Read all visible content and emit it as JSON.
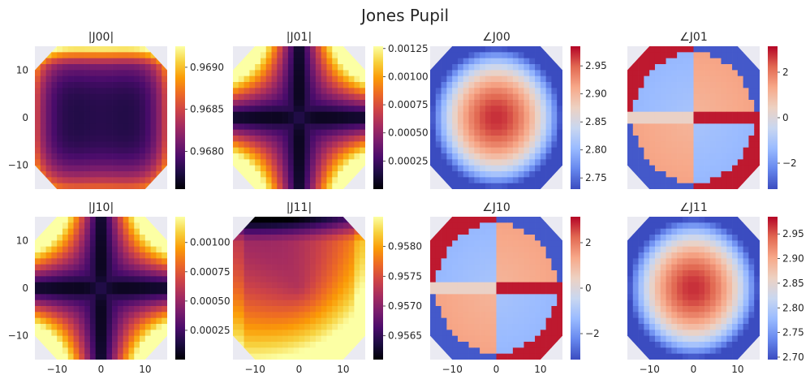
{
  "figure": {
    "title": "Jones Pupil"
  },
  "chart_data": [
    {
      "type": "heatmap",
      "title": "|J00|",
      "colormap": "inferno",
      "pattern": "J00amp",
      "xlim": [
        -15,
        15
      ],
      "ylim": [
        -15,
        15
      ],
      "xticks": [
        -10,
        0,
        10
      ],
      "xtick_labels": [
        "−10",
        "0",
        "10"
      ],
      "show_xticks": false,
      "yticks": [
        -10,
        0,
        10
      ],
      "ytick_labels": [
        "−10",
        "0",
        "10"
      ],
      "show_yticks": true,
      "clim": [
        0.96755,
        0.96925
      ],
      "colorbar_ticks": [
        0.968,
        0.9685,
        0.969
      ],
      "colorbar_labels": [
        "0.9680",
        "0.9685",
        "0.9690"
      ]
    },
    {
      "type": "heatmap",
      "title": "|J01|",
      "colormap": "inferno",
      "pattern": "offdiag",
      "xlim": [
        -15,
        15
      ],
      "ylim": [
        -15,
        15
      ],
      "xticks": [
        -10,
        0,
        10
      ],
      "xtick_labels": [
        "−10",
        "0",
        "10"
      ],
      "show_xticks": false,
      "yticks": [
        -10,
        0,
        10
      ],
      "ytick_labels": [
        "−10",
        "0",
        "10"
      ],
      "show_yticks": false,
      "clim": [
        0.0,
        0.00127
      ],
      "colorbar_ticks": [
        0.00025,
        0.0005,
        0.00075,
        0.001,
        0.00125
      ],
      "colorbar_labels": [
        "0.00025",
        "0.00050",
        "0.00075",
        "0.00100",
        "0.00125"
      ]
    },
    {
      "type": "heatmap",
      "title": "∠J00",
      "colormap": "coolwarm",
      "pattern": "phaseRadial",
      "xlim": [
        -15,
        15
      ],
      "ylim": [
        -15,
        15
      ],
      "xticks": [
        -10,
        0,
        10
      ],
      "xtick_labels": [
        "−10",
        "0",
        "10"
      ],
      "show_xticks": false,
      "yticks": [
        -10,
        0,
        10
      ],
      "ytick_labels": [
        "−10",
        "0",
        "10"
      ],
      "show_yticks": false,
      "clim": [
        2.73,
        2.985
      ],
      "colorbar_ticks": [
        2.75,
        2.8,
        2.85,
        2.9,
        2.95
      ],
      "colorbar_labels": [
        "2.75",
        "2.80",
        "2.85",
        "2.90",
        "2.95"
      ]
    },
    {
      "type": "heatmap",
      "title": "∠J01",
      "colormap": "coolwarm",
      "pattern": "phaseQuad",
      "xlim": [
        -15,
        15
      ],
      "ylim": [
        -15,
        15
      ],
      "xticks": [
        -10,
        0,
        10
      ],
      "xtick_labels": [
        "−10",
        "0",
        "10"
      ],
      "show_xticks": false,
      "yticks": [
        -10,
        0,
        10
      ],
      "ytick_labels": [
        "−10",
        "0",
        "10"
      ],
      "show_yticks": false,
      "clim": [
        -3.1416,
        3.1416
      ],
      "colorbar_ticks": [
        -2,
        0,
        2
      ],
      "colorbar_labels": [
        "−2",
        "0",
        "2"
      ]
    },
    {
      "type": "heatmap",
      "title": "|J10|",
      "colormap": "inferno",
      "pattern": "offdiag",
      "xlim": [
        -15,
        15
      ],
      "ylim": [
        -15,
        15
      ],
      "xticks": [
        -10,
        0,
        10
      ],
      "xtick_labels": [
        "−10",
        "0",
        "10"
      ],
      "show_xticks": true,
      "yticks": [
        -10,
        0,
        10
      ],
      "ytick_labels": [
        "−10",
        "0",
        "10"
      ],
      "show_yticks": true,
      "clim": [
        0.0,
        0.00122
      ],
      "colorbar_ticks": [
        0.00025,
        0.0005,
        0.00075,
        0.001
      ],
      "colorbar_labels": [
        "0.00025",
        "0.00050",
        "0.00075",
        "0.00100"
      ]
    },
    {
      "type": "heatmap",
      "title": "|J11|",
      "colormap": "inferno",
      "pattern": "J11amp",
      "xlim": [
        -15,
        15
      ],
      "ylim": [
        -15,
        15
      ],
      "xticks": [
        -10,
        0,
        10
      ],
      "xtick_labels": [
        "−10",
        "0",
        "10"
      ],
      "show_xticks": true,
      "yticks": [
        -10,
        0,
        10
      ],
      "ytick_labels": [
        "−10",
        "0",
        "10"
      ],
      "show_yticks": false,
      "clim": [
        0.9561,
        0.9585
      ],
      "colorbar_ticks": [
        0.9565,
        0.957,
        0.9575,
        0.958
      ],
      "colorbar_labels": [
        "0.9565",
        "0.9570",
        "0.9575",
        "0.9580"
      ]
    },
    {
      "type": "heatmap",
      "title": "∠J10",
      "colormap": "coolwarm",
      "pattern": "phaseQuad",
      "xlim": [
        -15,
        15
      ],
      "ylim": [
        -15,
        15
      ],
      "xticks": [
        -10,
        0,
        10
      ],
      "xtick_labels": [
        "−10",
        "0",
        "10"
      ],
      "show_xticks": true,
      "yticks": [
        -10,
        0,
        10
      ],
      "ytick_labels": [
        "−10",
        "0",
        "10"
      ],
      "show_yticks": false,
      "clim": [
        -3.1416,
        3.1416
      ],
      "colorbar_ticks": [
        -2,
        0,
        2
      ],
      "colorbar_labels": [
        "−2",
        "0",
        "2"
      ]
    },
    {
      "type": "heatmap",
      "title": "∠J11",
      "colormap": "coolwarm",
      "pattern": "phaseRadial",
      "xlim": [
        -15,
        15
      ],
      "ylim": [
        -15,
        15
      ],
      "xticks": [
        -10,
        0,
        10
      ],
      "xtick_labels": [
        "−10",
        "0",
        "10"
      ],
      "show_xticks": true,
      "yticks": [
        -10,
        0,
        10
      ],
      "ytick_labels": [
        "−10",
        "0",
        "10"
      ],
      "show_yticks": false,
      "clim": [
        2.695,
        2.985
      ],
      "colorbar_ticks": [
        2.7,
        2.75,
        2.8,
        2.85,
        2.9,
        2.95
      ],
      "colorbar_labels": [
        "2.70",
        "2.75",
        "2.80",
        "2.85",
        "2.90",
        "2.95"
      ]
    }
  ],
  "colormaps": {
    "inferno": [
      "#000004",
      "#1b0c41",
      "#4a0c6b",
      "#781c6d",
      "#a52c60",
      "#cf4446",
      "#ed6925",
      "#fb9b06",
      "#f7d13d",
      "#fcffa4"
    ],
    "coolwarm": [
      "#3b4cc0",
      "#6788ee",
      "#9abbff",
      "#c9d7f0",
      "#edd1c2",
      "#f7a889",
      "#e26952",
      "#b40426"
    ]
  },
  "style": {
    "axes_face": "#eaeaf2",
    "grid": "#ffffff",
    "text": "#262626"
  }
}
